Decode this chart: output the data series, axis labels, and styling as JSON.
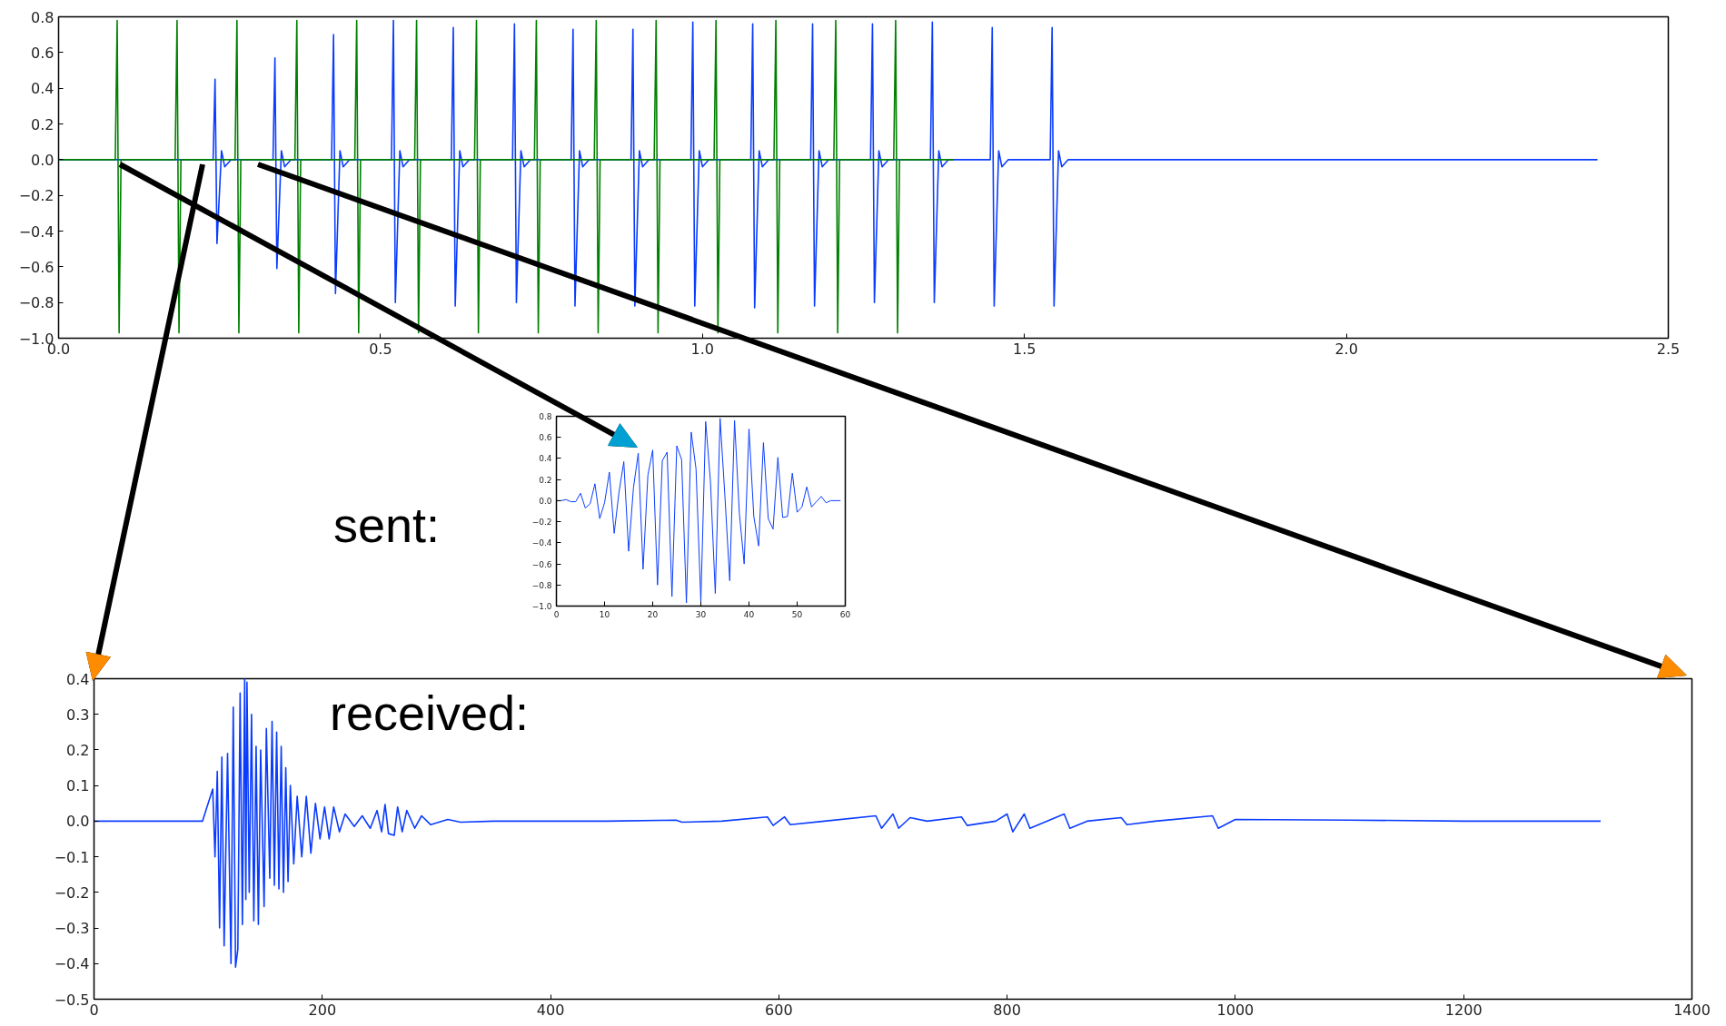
{
  "chart_data": [
    {
      "type": "line",
      "xlim": [
        0,
        2.5
      ],
      "ylim": [
        -1.0,
        0.8
      ],
      "xticks": [
        {
          "value": 0,
          "label": "0.0"
        },
        {
          "value": 0.5,
          "label": "0.5"
        },
        {
          "value": 1,
          "label": "1.0"
        },
        {
          "value": 1.5,
          "label": "1.5"
        },
        {
          "value": 2,
          "label": "2.0"
        },
        {
          "value": 2.5,
          "label": "2.5"
        }
      ],
      "yticks": [
        {
          "value": -1.0,
          "label": "−1.0"
        },
        {
          "value": -0.8,
          "label": "−0.8"
        },
        {
          "value": -0.6,
          "label": "−0.6"
        },
        {
          "value": -0.4,
          "label": "−0.4"
        },
        {
          "value": -0.2,
          "label": "−0.2"
        },
        {
          "value": 0,
          "label": "0.0"
        },
        {
          "value": 0.2,
          "label": "0.2"
        },
        {
          "value": 0.4,
          "label": "0.4"
        },
        {
          "value": 0.6,
          "label": "0.6"
        },
        {
          "value": 0.8,
          "label": "0.8"
        }
      ],
      "series": [
        {
          "color": "#0a3cff",
          "x": [
            0,
            0.24,
            0.243,
            0.246,
            0.253,
            0.258,
            0.268,
            0.333,
            0.336,
            0.339,
            0.346,
            0.351,
            0.361,
            0.424,
            0.427,
            0.43,
            0.437,
            0.442,
            0.452,
            0.517,
            0.52,
            0.523,
            0.53,
            0.535,
            0.545,
            0.61,
            0.613,
            0.616,
            0.623,
            0.628,
            0.638,
            0.705,
            0.708,
            0.711,
            0.718,
            0.723,
            0.733,
            0.796,
            0.799,
            0.802,
            0.809,
            0.814,
            0.824,
            0.889,
            0.892,
            0.895,
            0.902,
            0.907,
            0.917,
            0.982,
            0.985,
            0.988,
            0.995,
            1.0,
            1.01,
            1.075,
            1.078,
            1.081,
            1.088,
            1.093,
            1.103,
            1.168,
            1.171,
            1.174,
            1.181,
            1.186,
            1.196,
            1.261,
            1.264,
            1.267,
            1.274,
            1.279,
            1.289,
            1.354,
            1.357,
            1.36,
            1.367,
            1.372,
            1.382,
            1.447,
            1.45,
            1.453,
            1.46,
            1.465,
            1.475,
            1.54,
            1.543,
            1.546,
            1.553,
            1.558,
            1.568,
            2.39
          ],
          "values": [
            0,
            0,
            0.45,
            -0.47,
            0.05,
            -0.04,
            0,
            0,
            0.57,
            -0.61,
            0.05,
            -0.04,
            0,
            0,
            0.7,
            -0.75,
            0.05,
            -0.04,
            0,
            0,
            0.78,
            -0.8,
            0.05,
            -0.04,
            0,
            0,
            0.74,
            -0.82,
            0.05,
            -0.04,
            0,
            0,
            0.76,
            -0.8,
            0.05,
            -0.04,
            0,
            0,
            0.73,
            -0.82,
            0.05,
            -0.04,
            0,
            0,
            0.73,
            -0.82,
            0.05,
            -0.04,
            0,
            0,
            0.77,
            -0.82,
            0.05,
            -0.04,
            0,
            0,
            0.76,
            -0.83,
            0.05,
            -0.04,
            0,
            0,
            0.76,
            -0.82,
            0.05,
            -0.04,
            0,
            0,
            0.76,
            -0.8,
            0.05,
            -0.04,
            0,
            0,
            0.77,
            -0.8,
            0.05,
            -0.04,
            0,
            0,
            0.74,
            -0.82,
            0.05,
            -0.04,
            0,
            0,
            0.74,
            -0.82,
            0.05,
            -0.04,
            0,
            0
          ]
        },
        {
          "color": "#008000",
          "x": [
            0,
            0.088,
            0.091,
            0.094,
            0.097,
            0.181,
            0.184,
            0.187,
            0.19,
            0.274,
            0.277,
            0.28,
            0.283,
            0.367,
            0.37,
            0.373,
            0.376,
            0.46,
            0.463,
            0.466,
            0.469,
            0.553,
            0.556,
            0.559,
            0.562,
            0.646,
            0.649,
            0.652,
            0.655,
            0.739,
            0.742,
            0.745,
            0.748,
            0.832,
            0.835,
            0.838,
            0.841,
            0.925,
            0.928,
            0.931,
            0.934,
            1.018,
            1.021,
            1.024,
            1.027,
            1.111,
            1.114,
            1.117,
            1.12,
            1.204,
            1.207,
            1.21,
            1.213,
            1.297,
            1.3,
            1.303,
            1.306,
            1.39
          ],
          "values": [
            0,
            0,
            0.78,
            -0.97,
            0,
            0,
            0.78,
            -0.97,
            0,
            0,
            0.78,
            -0.97,
            0,
            0,
            0.78,
            -0.97,
            0,
            0,
            0.78,
            -0.97,
            0,
            0,
            0.78,
            -0.97,
            0,
            0,
            0.78,
            -0.97,
            0,
            0,
            0.78,
            -0.97,
            0,
            0,
            0.78,
            -0.97,
            0,
            0,
            0.78,
            -0.97,
            0,
            0,
            0.78,
            -0.97,
            0,
            0,
            0.78,
            -0.97,
            0,
            0,
            0.78,
            -0.97,
            0,
            0,
            0.78,
            -0.97,
            0,
            0
          ]
        }
      ]
    },
    {
      "type": "line",
      "xlim": [
        0,
        60
      ],
      "ylim": [
        -1.0,
        0.8
      ],
      "annotations": [
        "sent:"
      ],
      "xticks": [
        0,
        10,
        20,
        30,
        40,
        50,
        60
      ],
      "yticks": [
        {
          "value": -1.0,
          "label": "−1.0"
        },
        {
          "value": -0.8,
          "label": "−0.8"
        },
        {
          "value": -0.6,
          "label": "−0.6"
        },
        {
          "value": -0.4,
          "label": "−0.4"
        },
        {
          "value": -0.2,
          "label": "−0.2"
        },
        {
          "value": 0,
          "label": "0.0"
        },
        {
          "value": 0.2,
          "label": "0.2"
        },
        {
          "value": 0.4,
          "label": "0.4"
        },
        {
          "value": 0.6,
          "label": "0.6"
        },
        {
          "value": 0.8,
          "label": "0.8"
        }
      ],
      "series": [
        {
          "color": "#0a3cff",
          "x": [
            0,
            1,
            2,
            3,
            4,
            5,
            6,
            7,
            8,
            9,
            10,
            11,
            12,
            13,
            14,
            15,
            16,
            17,
            18,
            19,
            20,
            21,
            22,
            23,
            24,
            25,
            26,
            27,
            28,
            29,
            30,
            31,
            32,
            33,
            34,
            35,
            36,
            37,
            38,
            39,
            40,
            41,
            42,
            43,
            44,
            45,
            46,
            47,
            48,
            49,
            50,
            51,
            52,
            53,
            54,
            55,
            56,
            57,
            58,
            59
          ],
          "values": [
            0,
            0,
            0.01,
            -0.01,
            -0.01,
            0.07,
            -0.07,
            -0.03,
            0.16,
            -0.17,
            -0.02,
            0.27,
            -0.31,
            0.08,
            0.37,
            -0.48,
            0.12,
            0.45,
            -0.65,
            0.24,
            0.48,
            -0.8,
            0.38,
            0.46,
            -0.91,
            0.52,
            0.39,
            -0.97,
            0.65,
            0.3,
            -0.96,
            0.75,
            0.18,
            -0.88,
            0.78,
            0.04,
            -0.76,
            0.76,
            -0.12,
            -0.6,
            0.68,
            -0.15,
            -0.43,
            0.55,
            -0.17,
            -0.27,
            0.41,
            -0.16,
            -0.15,
            0.26,
            -0.11,
            -0.06,
            0.13,
            -0.06,
            -0.01,
            0.04,
            -0.02,
            0,
            0,
            0
          ]
        }
      ]
    },
    {
      "type": "line",
      "xlim": [
        0,
        1400
      ],
      "ylim": [
        -0.5,
        0.4
      ],
      "annotations": [
        "received:"
      ],
      "xticks": [
        0,
        200,
        400,
        600,
        800,
        1000,
        1200,
        1400
      ],
      "yticks": [
        {
          "value": -0.5,
          "label": "−0.5"
        },
        {
          "value": -0.4,
          "label": "−0.4"
        },
        {
          "value": -0.3,
          "label": "−0.3"
        },
        {
          "value": -0.2,
          "label": "−0.2"
        },
        {
          "value": -0.1,
          "label": "−0.1"
        },
        {
          "value": 0,
          "label": "0.0"
        },
        {
          "value": 0.1,
          "label": "0.1"
        },
        {
          "value": 0.2,
          "label": "0.2"
        },
        {
          "value": 0.3,
          "label": "0.3"
        },
        {
          "value": 0.4,
          "label": "0.4"
        }
      ],
      "series": [
        {
          "color": "#0a3cff",
          "x": [
            0,
            50,
            95,
            100,
            104,
            106,
            108,
            110,
            112,
            114,
            117,
            120,
            122,
            124,
            126,
            128,
            130,
            132,
            133,
            134,
            136,
            138,
            140,
            142,
            144,
            146,
            149,
            151,
            154,
            156,
            158,
            160,
            162,
            164,
            166,
            168,
            170,
            172,
            175,
            178,
            182,
            186,
            190,
            194,
            198,
            202,
            206,
            210,
            215,
            220,
            228,
            235,
            242,
            248,
            252,
            255,
            258,
            263,
            266,
            270,
            274,
            281,
            287,
            295,
            310,
            321,
            350,
            450,
            510,
            515,
            550,
            590,
            595,
            605,
            610,
            640,
            685,
            690,
            700,
            705,
            715,
            730,
            760,
            765,
            790,
            800,
            805,
            815,
            820,
            850,
            855,
            870,
            900,
            905,
            930,
            980,
            985,
            1000,
            1100,
            1200,
            1320
          ],
          "values": [
            0,
            0,
            0,
            0.05,
            0.09,
            -0.1,
            0.14,
            -0.3,
            0.18,
            -0.35,
            0.19,
            -0.4,
            0.32,
            -0.41,
            -0.36,
            0.36,
            -0.29,
            0.4,
            -0.22,
            0.39,
            -0.2,
            0.3,
            -0.28,
            0.21,
            -0.29,
            0.2,
            -0.24,
            0.26,
            -0.16,
            0.28,
            -0.18,
            0.25,
            -0.19,
            0.21,
            -0.2,
            0.15,
            -0.17,
            0.1,
            -0.12,
            0.07,
            -0.1,
            0.07,
            -0.09,
            0.05,
            -0.05,
            0.04,
            -0.05,
            0.04,
            -0.03,
            0.02,
            -0.015,
            0.015,
            -0.02,
            0.03,
            -0.03,
            0.047,
            -0.035,
            -0.04,
            0.04,
            -0.03,
            0.03,
            -0.02,
            0.015,
            -0.01,
            0.005,
            -0.003,
            0,
            0,
            0.003,
            -0.003,
            0,
            0.012,
            -0.012,
            0.012,
            -0.01,
            0,
            0.015,
            -0.02,
            0.02,
            -0.02,
            0.01,
            0,
            0.012,
            -0.012,
            0,
            0.02,
            -0.03,
            0.02,
            -0.02,
            0.02,
            -0.02,
            0,
            0.01,
            -0.01,
            0,
            0.015,
            -0.02,
            0.005,
            0.003,
            0,
            0
          ]
        }
      ]
    }
  ]
}
